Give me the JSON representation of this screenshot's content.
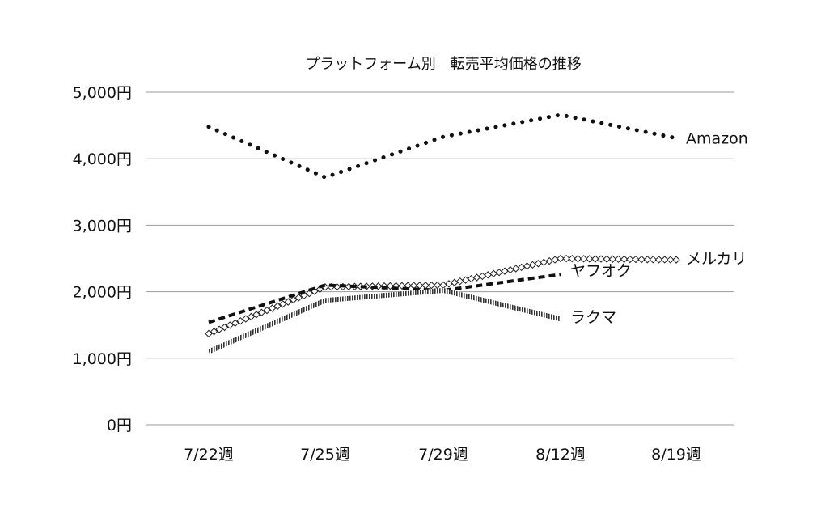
{
  "chart_data": {
    "type": "line",
    "title": "プラットフォーム別　転売平均価格の推移",
    "xlabel": "",
    "ylabel": "",
    "categories": [
      "7/22週",
      "7/25週",
      "7/29週",
      "8/12週",
      "8/19週"
    ],
    "y_ticks": [
      "0円",
      "1,000円",
      "2,000円",
      "3,000円",
      "4,000円",
      "5,000円"
    ],
    "ylim": [
      0,
      5000
    ],
    "grid": true,
    "legend": "labels at line ends",
    "series": [
      {
        "name": "Amazon",
        "values": [
          4480,
          3720,
          4330,
          4660,
          4310
        ],
        "style": "dotted"
      },
      {
        "name": "メルカリ",
        "values": [
          1370,
          2070,
          2100,
          2500,
          2480
        ],
        "style": "diamond"
      },
      {
        "name": "ヤフオク",
        "values": [
          1540,
          2100,
          2020,
          2260,
          null
        ],
        "style": "dashed"
      },
      {
        "name": "ラクマ",
        "values": [
          1100,
          1870,
          2020,
          1590,
          null
        ],
        "style": "hatched"
      }
    ]
  }
}
